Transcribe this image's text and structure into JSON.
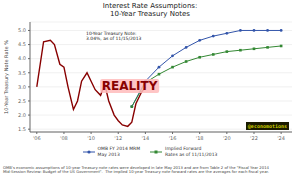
{
  "chart_data": {
    "type": "line",
    "title": "Interest Rate Assumptions:",
    "subtitle": "10-Year Treasury Notes",
    "ylabel": "10-Year Treasury Note Rate %",
    "series": [
      {
        "name": "OMB FY 2014 MRM\nMay 2013",
        "color": "#3355aa",
        "marker": "circle",
        "x": [
          2013,
          2014,
          2015,
          2016,
          2017,
          2018,
          2019,
          2020,
          2021,
          2022,
          2023,
          2024
        ],
        "values": [
          2.3,
          3.2,
          3.7,
          4.1,
          4.4,
          4.65,
          4.8,
          4.9,
          5.0,
          5.0,
          5.0,
          5.0
        ]
      },
      {
        "name": "Implied Forward\nRates as of 11/11/2013",
        "color": "#338833",
        "marker": "square",
        "x": [
          2013,
          2014,
          2015,
          2016,
          2017,
          2018,
          2019,
          2020,
          2021,
          2022,
          2023,
          2024
        ],
        "values": [
          2.3,
          3.15,
          3.45,
          3.7,
          3.9,
          4.05,
          4.15,
          4.25,
          4.3,
          4.35,
          4.4,
          4.45
        ]
      },
      {
        "color": "#880000",
        "x": [
          2006,
          2006.5,
          2007,
          2007.3,
          2007.7,
          2008,
          2008.3,
          2008.7,
          2009,
          2009.3,
          2009.7,
          2010,
          2010.3,
          2010.7,
          2011,
          2011.3,
          2011.7,
          2012,
          2012.3,
          2012.7,
          2013,
          2013.3,
          2013.7,
          2014
        ],
        "values": [
          3.0,
          4.6,
          4.65,
          4.5,
          3.8,
          3.7,
          3.0,
          2.2,
          2.5,
          3.2,
          3.5,
          3.2,
          2.9,
          2.7,
          3.1,
          2.5,
          2.0,
          1.8,
          1.65,
          1.6,
          1.75,
          2.4,
          2.8,
          3.0
        ]
      }
    ],
    "xlim": [
      2005.5,
      2024.8
    ],
    "xticks": [
      {
        "value": 2006,
        "label": "'06"
      },
      {
        "value": 2008,
        "label": "'08"
      },
      {
        "value": 2010,
        "label": "'10"
      },
      {
        "value": 2012,
        "label": "'12"
      },
      {
        "value": 2014,
        "label": "'14"
      },
      {
        "value": 2016,
        "label": "'16"
      },
      {
        "value": 2018,
        "label": "'18"
      },
      {
        "value": 2020,
        "label": "'20"
      },
      {
        "value": 2022,
        "label": "'22"
      },
      {
        "value": 2024,
        "label": "'24"
      }
    ],
    "ylim": [
      1.4,
      5.3
    ],
    "yticks": [
      1.5,
      {
        "value": 2.0,
        "label": "2.0"
      },
      2.5,
      {
        "value": 3.0,
        "label": "3.0"
      },
      3.5,
      {
        "value": 4.0,
        "label": "4.0"
      },
      4.5,
      {
        "value": 5.0,
        "label": "5.0"
      }
    ],
    "grid": true,
    "legend": "bottom",
    "annotations": [
      "10-Year Treasury Note:\n3.04%, as of 11/15/2013",
      "REALITY",
      "@economotions",
      "OMB's economic assumptions of 10-year Treasury note rates were developed in late May 2013 and are from Table 2 of the \"Fiscal Year 2014\nMid-Session Review: Budget of the US Government\".  The implied 10-year Treasury note forward rates are the averages for each fiscal year."
    ]
  }
}
